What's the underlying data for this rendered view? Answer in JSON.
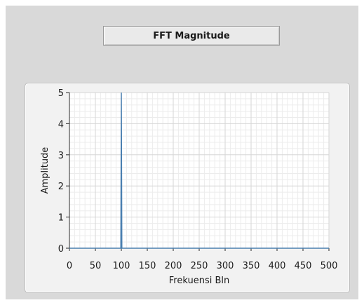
{
  "title": "FFT Magnitude",
  "chart_data": {
    "type": "line",
    "xlabel": "Frekuensi Bln",
    "ylabel": "Amplitude",
    "xlim": [
      0,
      500
    ],
    "ylim": [
      0,
      5
    ],
    "x_ticks": [
      0,
      50,
      100,
      150,
      200,
      250,
      300,
      350,
      400,
      450,
      500
    ],
    "y_ticks": [
      0,
      1,
      2,
      3,
      4,
      5
    ],
    "grid": true,
    "minor_grid": true,
    "line_color": "#4a7fb0",
    "series": [
      {
        "x": [
          0,
          99,
          100,
          101,
          500
        ],
        "y": [
          0,
          0,
          5,
          0,
          0
        ]
      }
    ]
  }
}
